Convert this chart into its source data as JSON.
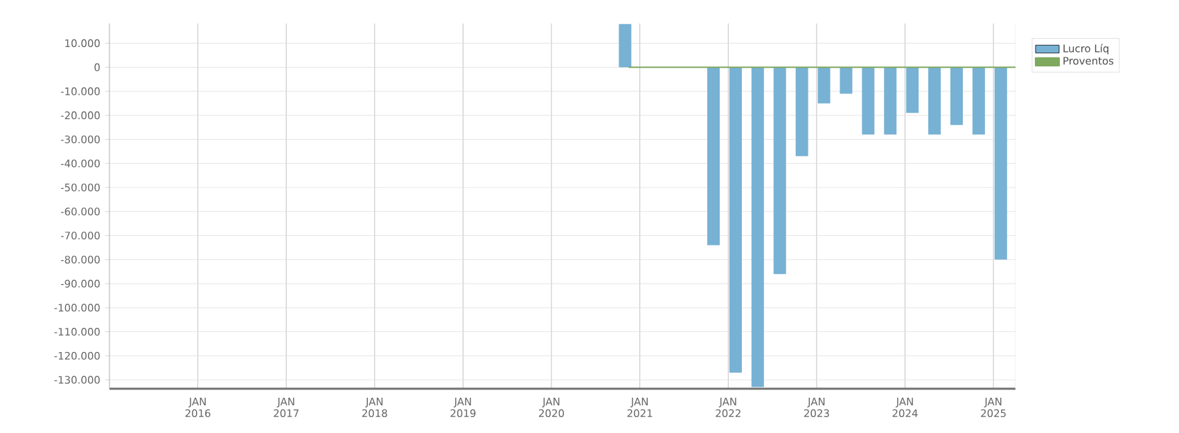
{
  "chart_data": {
    "type": "bar",
    "x": [
      "2020-11",
      "2021-11",
      "2022-02",
      "2022-05",
      "2022-08",
      "2022-11",
      "2023-02",
      "2023-05",
      "2023-08",
      "2023-11",
      "2024-02",
      "2024-05",
      "2024-08",
      "2024-11",
      "2025-02"
    ],
    "series": [
      {
        "name": "Lucro Líq",
        "color": "#77b1d4",
        "values": [
          18000,
          -74000,
          -127000,
          -133000,
          -86000,
          -37000,
          -15000,
          -11000,
          -28000,
          -28000,
          -19000,
          -28000,
          -24000,
          -28000,
          -80000
        ]
      },
      {
        "name": "Proventos",
        "type": "line",
        "color": "#7fa95f",
        "x": [
          "2020-11-15",
          "2025-04"
        ],
        "values": [
          0,
          0
        ]
      }
    ],
    "xlim": [
      "2015-01",
      "2025-04"
    ],
    "xticks": [
      {
        "value": "2016-01",
        "label": "JAN 2016"
      },
      {
        "value": "2017-01",
        "label": "JAN 2017"
      },
      {
        "value": "2018-01",
        "label": "JAN 2018"
      },
      {
        "value": "2019-01",
        "label": "JAN 2019"
      },
      {
        "value": "2020-01",
        "label": "JAN 2020"
      },
      {
        "value": "2021-01",
        "label": "JAN 2021"
      },
      {
        "value": "2022-01",
        "label": "JAN 2022"
      },
      {
        "value": "2023-01",
        "label": "JAN 2023"
      },
      {
        "value": "2024-01",
        "label": "JAN 2024"
      },
      {
        "value": "2025-01",
        "label": "JAN 2025"
      }
    ],
    "ylim": [
      -133700,
      18200
    ],
    "yticks": [
      {
        "value": 10000,
        "label": "10.000"
      },
      0,
      {
        "value": -10000,
        "label": "-10.000"
      },
      {
        "value": -20000,
        "label": "-20.000"
      },
      {
        "value": -30000,
        "label": "-30.000"
      },
      {
        "value": -40000,
        "label": "-40.000"
      },
      {
        "value": -50000,
        "label": "-50.000"
      },
      {
        "value": -60000,
        "label": "-60.000"
      },
      {
        "value": -70000,
        "label": "-70.000"
      },
      {
        "value": -80000,
        "label": "-80.000"
      },
      {
        "value": -90000,
        "label": "-90.000"
      },
      {
        "value": -100000,
        "label": "-100.000"
      },
      {
        "value": -110000,
        "label": "-110.000"
      },
      {
        "value": -120000,
        "label": "-120.000"
      },
      {
        "value": -130000,
        "label": "-130.000"
      }
    ],
    "grid": true,
    "legend": "top right"
  }
}
